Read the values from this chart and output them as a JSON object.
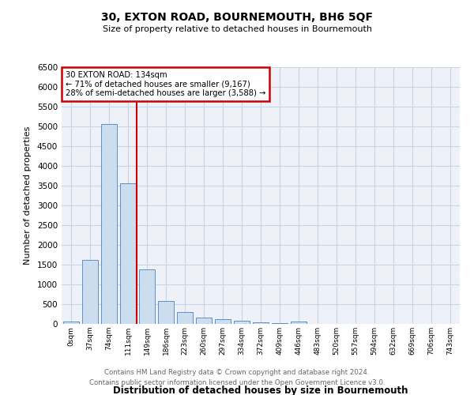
{
  "title": "30, EXTON ROAD, BOURNEMOUTH, BH6 5QF",
  "subtitle": "Size of property relative to detached houses in Bournemouth",
  "xlabel": "Distribution of detached houses by size in Bournemouth",
  "ylabel": "Number of detached properties",
  "footer_line1": "Contains HM Land Registry data © Crown copyright and database right 2024.",
  "footer_line2": "Contains public sector information licensed under the Open Government Licence v3.0.",
  "bin_labels": [
    "0sqm",
    "37sqm",
    "74sqm",
    "111sqm",
    "149sqm",
    "186sqm",
    "223sqm",
    "260sqm",
    "297sqm",
    "334sqm",
    "372sqm",
    "409sqm",
    "446sqm",
    "483sqm",
    "520sqm",
    "557sqm",
    "594sqm",
    "632sqm",
    "669sqm",
    "706sqm",
    "743sqm"
  ],
  "bar_values": [
    65,
    1620,
    5060,
    3560,
    1390,
    580,
    295,
    155,
    130,
    85,
    45,
    25,
    55,
    0,
    0,
    0,
    0,
    0,
    0,
    0,
    0
  ],
  "bar_color": "#ccddf0",
  "bar_edge_color": "#5b8fc9",
  "ylim": [
    0,
    6500
  ],
  "yticks": [
    0,
    500,
    1000,
    1500,
    2000,
    2500,
    3000,
    3500,
    4000,
    4500,
    5000,
    5500,
    6000,
    6500
  ],
  "property_line_x": 3.47,
  "vline_color": "#cc0000",
  "annotation_text_line1": "30 EXTON ROAD: 134sqm",
  "annotation_text_line2": "← 71% of detached houses are smaller (9,167)",
  "annotation_text_line3": "28% of semi-detached houses are larger (3,588) →",
  "annotation_box_color": "#ffffff",
  "annotation_box_edge": "#cc0000",
  "background_color": "#ffffff",
  "grid_color": "#c8d4e8",
  "plot_bg_color": "#eef2f8"
}
